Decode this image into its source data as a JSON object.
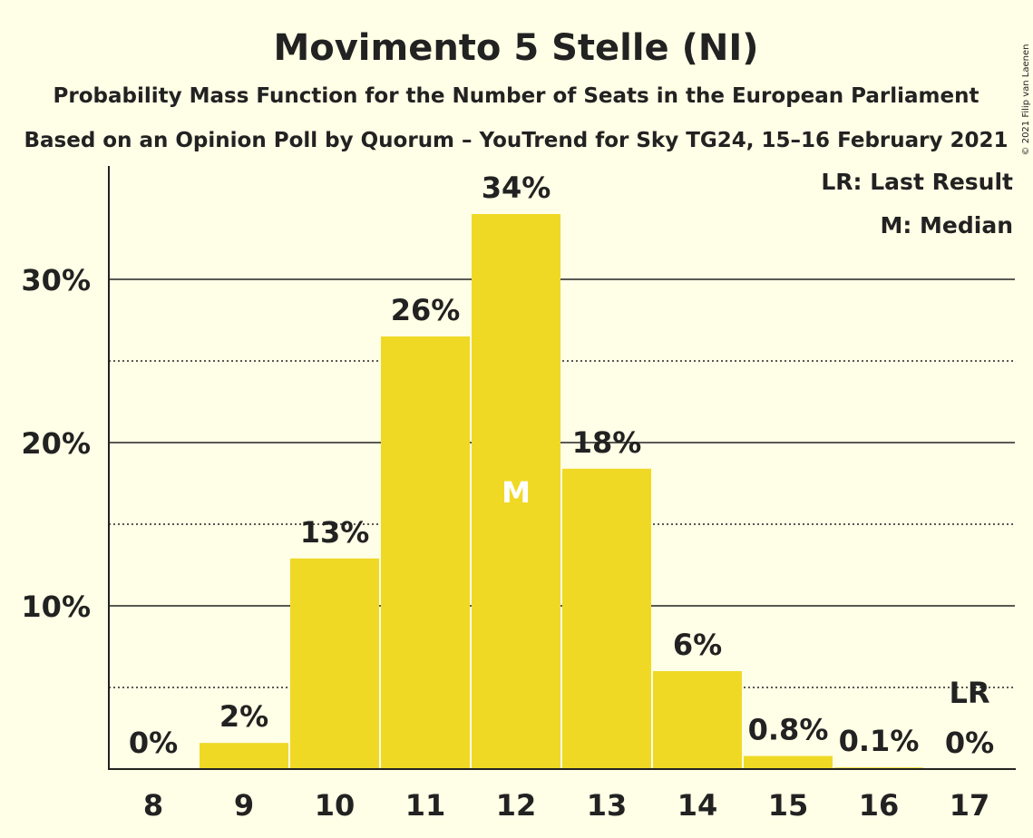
{
  "chart_data": {
    "type": "bar",
    "title": "Movimento 5 Stelle (NI)",
    "subtitle": "Probability Mass Function for the Number of Seats in the European Parliament",
    "subtitle2": "Based on an Opinion Poll by Quorum – YouTrend for Sky TG24, 15–16 February 2021",
    "categories": [
      "8",
      "9",
      "10",
      "11",
      "12",
      "13",
      "14",
      "15",
      "16",
      "17"
    ],
    "values": [
      0,
      1.6,
      12.9,
      26.5,
      34.0,
      18.4,
      6.0,
      0.8,
      0.1,
      0
    ],
    "labels": [
      "0%",
      "2%",
      "13%",
      "26%",
      "34%",
      "18%",
      "6%",
      "0.8%",
      "0.1%",
      "0%"
    ],
    "y_ticks": [
      {
        "value": 10,
        "label": "10%"
      },
      {
        "value": 20,
        "label": "20%"
      },
      {
        "value": 30,
        "label": "30%"
      }
    ],
    "minor_gridlines": [
      5,
      15,
      25
    ],
    "ylim": [
      0,
      37
    ],
    "median_category": "12",
    "median_marker": "M",
    "last_result_category": "17",
    "last_result_marker": "LR",
    "legend": [
      "LR: Last Result",
      "M: Median"
    ],
    "legend_position": "top-right",
    "bar_color": "#EFD925",
    "copyright": "© 2021 Filip van Laenen"
  }
}
